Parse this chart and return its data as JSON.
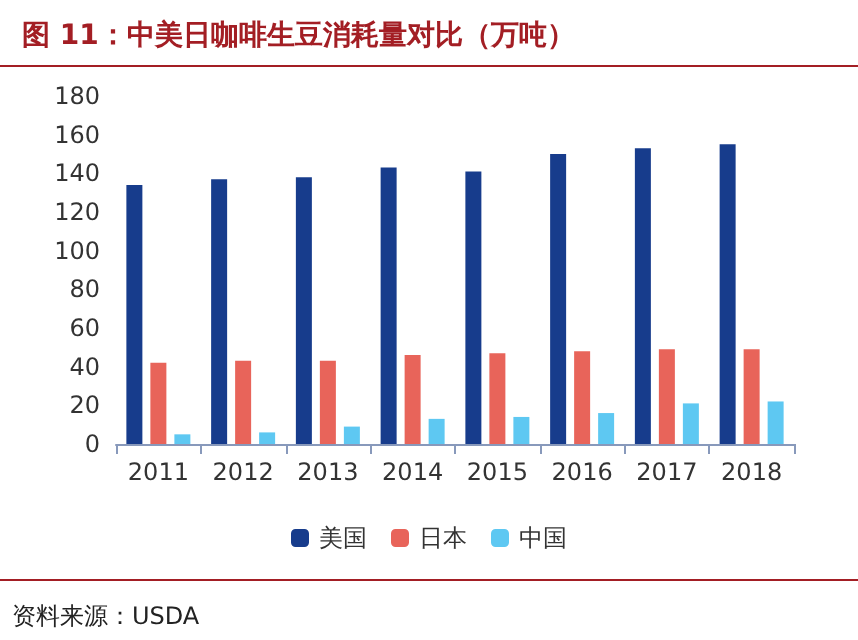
{
  "chart_data": {
    "type": "bar",
    "title": "图 11：中美日咖啡生豆消耗量对比（万吨）",
    "categories": [
      "2011",
      "2012",
      "2013",
      "2014",
      "2015",
      "2016",
      "2017",
      "2018"
    ],
    "series": [
      {
        "name": "美国",
        "color": "#173c8c",
        "values": [
          134,
          137,
          138,
          143,
          141,
          150,
          153,
          155
        ]
      },
      {
        "name": "日本",
        "color": "#e8645a",
        "values": [
          42,
          43,
          43,
          46,
          47,
          48,
          49,
          49
        ]
      },
      {
        "name": "中国",
        "color": "#5ec8f2",
        "values": [
          5,
          6,
          9,
          13,
          14,
          16,
          21,
          22
        ]
      }
    ],
    "ylim": [
      0,
      180
    ],
    "yticks": [
      0,
      20,
      40,
      60,
      80,
      100,
      120,
      140,
      160,
      180
    ],
    "grid": false,
    "legend": "bottom",
    "annotations": [
      "资料来源：USDA"
    ]
  }
}
